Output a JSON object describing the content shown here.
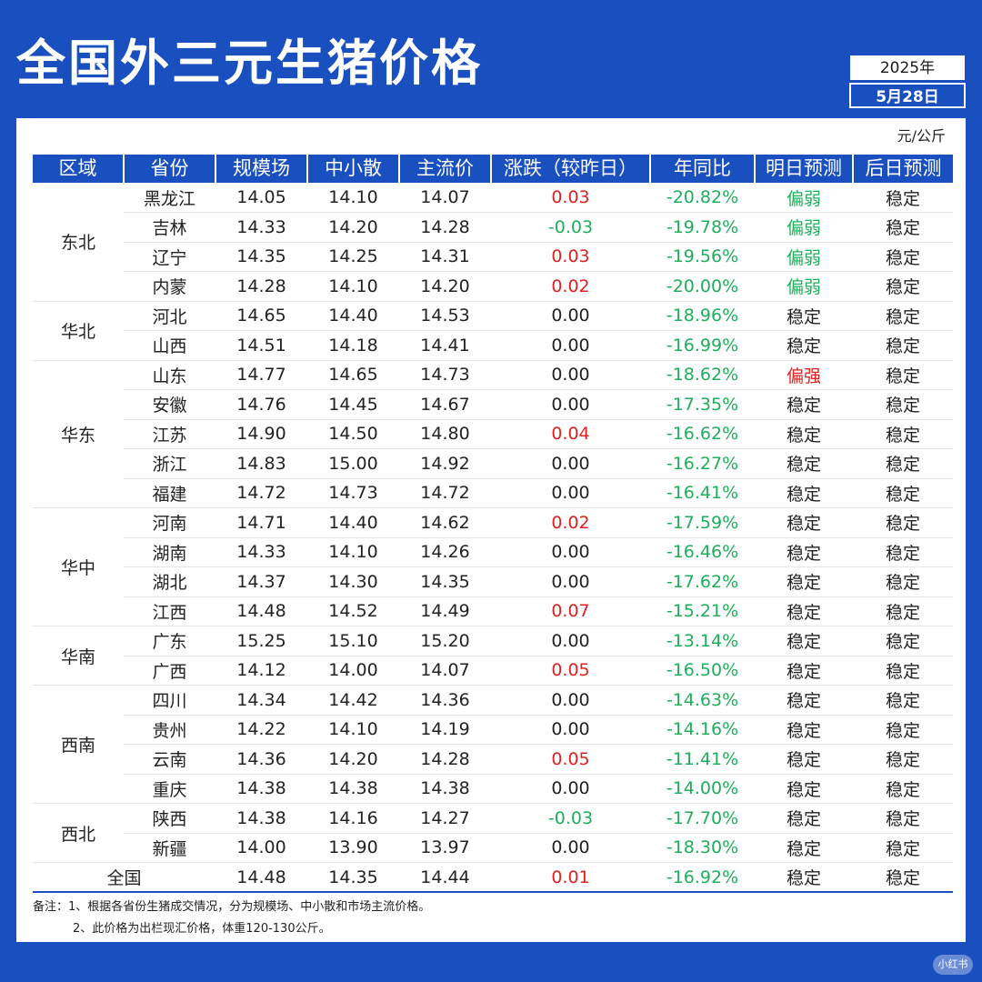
{
  "header": {
    "title": "全国外三元生猪价格",
    "year": "2025年",
    "date": "5月28日",
    "unit": "元/公斤"
  },
  "table": {
    "columns": [
      "区域",
      "省份",
      "规模场",
      "中小散",
      "主流价",
      "涨跌（较昨日）",
      "年同比",
      "明日预测",
      "后日预测"
    ],
    "regions": [
      {
        "name": "东北",
        "rows": [
          {
            "province": "黑龙江",
            "large": "14.05",
            "small": "14.10",
            "main": "14.07",
            "change": "0.03",
            "change_dir": "up",
            "yoy": "-20.82%",
            "tomorrow": "偏弱",
            "tomorrow_tone": "green",
            "after": "稳定"
          },
          {
            "province": "吉林",
            "large": "14.33",
            "small": "14.20",
            "main": "14.28",
            "change": "-0.03",
            "change_dir": "down",
            "yoy": "-19.78%",
            "tomorrow": "偏弱",
            "tomorrow_tone": "green",
            "after": "稳定"
          },
          {
            "province": "辽宁",
            "large": "14.35",
            "small": "14.25",
            "main": "14.31",
            "change": "0.03",
            "change_dir": "up",
            "yoy": "-19.56%",
            "tomorrow": "偏弱",
            "tomorrow_tone": "green",
            "after": "稳定"
          },
          {
            "province": "内蒙",
            "large": "14.28",
            "small": "14.10",
            "main": "14.20",
            "change": "0.02",
            "change_dir": "up",
            "yoy": "-20.00%",
            "tomorrow": "偏弱",
            "tomorrow_tone": "green",
            "after": "稳定"
          }
        ]
      },
      {
        "name": "华北",
        "rows": [
          {
            "province": "河北",
            "large": "14.65",
            "small": "14.40",
            "main": "14.53",
            "change": "0.00",
            "change_dir": "neutral",
            "yoy": "-18.96%",
            "tomorrow": "稳定",
            "tomorrow_tone": "neutral",
            "after": "稳定"
          },
          {
            "province": "山西",
            "large": "14.51",
            "small": "14.18",
            "main": "14.41",
            "change": "0.00",
            "change_dir": "neutral",
            "yoy": "-16.99%",
            "tomorrow": "稳定",
            "tomorrow_tone": "neutral",
            "after": "稳定"
          }
        ]
      },
      {
        "name": "华东",
        "rows": [
          {
            "province": "山东",
            "large": "14.77",
            "small": "14.65",
            "main": "14.73",
            "change": "0.00",
            "change_dir": "neutral",
            "yoy": "-18.62%",
            "tomorrow": "偏强",
            "tomorrow_tone": "red",
            "after": "稳定"
          },
          {
            "province": "安徽",
            "large": "14.76",
            "small": "14.45",
            "main": "14.67",
            "change": "0.00",
            "change_dir": "neutral",
            "yoy": "-17.35%",
            "tomorrow": "稳定",
            "tomorrow_tone": "neutral",
            "after": "稳定"
          },
          {
            "province": "江苏",
            "large": "14.90",
            "small": "14.50",
            "main": "14.80",
            "change": "0.04",
            "change_dir": "up",
            "yoy": "-16.62%",
            "tomorrow": "稳定",
            "tomorrow_tone": "neutral",
            "after": "稳定"
          },
          {
            "province": "浙江",
            "large": "14.83",
            "small": "15.00",
            "main": "14.92",
            "change": "0.00",
            "change_dir": "neutral",
            "yoy": "-16.27%",
            "tomorrow": "稳定",
            "tomorrow_tone": "neutral",
            "after": "稳定"
          },
          {
            "province": "福建",
            "large": "14.72",
            "small": "14.73",
            "main": "14.72",
            "change": "0.00",
            "change_dir": "neutral",
            "yoy": "-16.41%",
            "tomorrow": "稳定",
            "tomorrow_tone": "neutral",
            "after": "稳定"
          }
        ]
      },
      {
        "name": "华中",
        "rows": [
          {
            "province": "河南",
            "large": "14.71",
            "small": "14.40",
            "main": "14.62",
            "change": "0.02",
            "change_dir": "up",
            "yoy": "-17.59%",
            "tomorrow": "稳定",
            "tomorrow_tone": "neutral",
            "after": "稳定"
          },
          {
            "province": "湖南",
            "large": "14.33",
            "small": "14.10",
            "main": "14.26",
            "change": "0.00",
            "change_dir": "neutral",
            "yoy": "-16.46%",
            "tomorrow": "稳定",
            "tomorrow_tone": "neutral",
            "after": "稳定"
          },
          {
            "province": "湖北",
            "large": "14.37",
            "small": "14.30",
            "main": "14.35",
            "change": "0.00",
            "change_dir": "neutral",
            "yoy": "-17.62%",
            "tomorrow": "稳定",
            "tomorrow_tone": "neutral",
            "after": "稳定"
          },
          {
            "province": "江西",
            "large": "14.48",
            "small": "14.52",
            "main": "14.49",
            "change": "0.07",
            "change_dir": "up",
            "yoy": "-15.21%",
            "tomorrow": "稳定",
            "tomorrow_tone": "neutral",
            "after": "稳定"
          }
        ]
      },
      {
        "name": "华南",
        "rows": [
          {
            "province": "广东",
            "large": "15.25",
            "small": "15.10",
            "main": "15.20",
            "change": "0.00",
            "change_dir": "neutral",
            "yoy": "-13.14%",
            "tomorrow": "稳定",
            "tomorrow_tone": "neutral",
            "after": "稳定"
          },
          {
            "province": "广西",
            "large": "14.12",
            "small": "14.00",
            "main": "14.07",
            "change": "0.05",
            "change_dir": "up",
            "yoy": "-16.50%",
            "tomorrow": "稳定",
            "tomorrow_tone": "neutral",
            "after": "稳定"
          }
        ]
      },
      {
        "name": "西南",
        "rows": [
          {
            "province": "四川",
            "large": "14.34",
            "small": "14.42",
            "main": "14.36",
            "change": "0.00",
            "change_dir": "neutral",
            "yoy": "-14.63%",
            "tomorrow": "稳定",
            "tomorrow_tone": "neutral",
            "after": "稳定"
          },
          {
            "province": "贵州",
            "large": "14.22",
            "small": "14.10",
            "main": "14.19",
            "change": "0.00",
            "change_dir": "neutral",
            "yoy": "-14.16%",
            "tomorrow": "稳定",
            "tomorrow_tone": "neutral",
            "after": "稳定"
          },
          {
            "province": "云南",
            "large": "14.36",
            "small": "14.20",
            "main": "14.28",
            "change": "0.05",
            "change_dir": "up",
            "yoy": "-11.41%",
            "tomorrow": "稳定",
            "tomorrow_tone": "neutral",
            "after": "稳定"
          },
          {
            "province": "重庆",
            "large": "14.38",
            "small": "14.38",
            "main": "14.38",
            "change": "0.00",
            "change_dir": "neutral",
            "yoy": "-14.00%",
            "tomorrow": "稳定",
            "tomorrow_tone": "neutral",
            "after": "稳定"
          }
        ]
      },
      {
        "name": "西北",
        "rows": [
          {
            "province": "陕西",
            "large": "14.38",
            "small": "14.16",
            "main": "14.27",
            "change": "-0.03",
            "change_dir": "down",
            "yoy": "-17.70%",
            "tomorrow": "稳定",
            "tomorrow_tone": "neutral",
            "after": "稳定"
          },
          {
            "province": "新疆",
            "large": "14.00",
            "small": "13.90",
            "main": "13.97",
            "change": "0.00",
            "change_dir": "neutral",
            "yoy": "-18.30%",
            "tomorrow": "稳定",
            "tomorrow_tone": "neutral",
            "after": "稳定"
          }
        ]
      }
    ],
    "total": {
      "label": "全国",
      "large": "14.48",
      "small": "14.35",
      "main": "14.44",
      "change": "0.01",
      "change_dir": "up",
      "yoy": "-16.92%",
      "tomorrow": "稳定",
      "after": "稳定"
    }
  },
  "notes": {
    "line1": "备注：1、根据各省份生猪成交情况，分为规模场、中小散和市场主流价格。",
    "line2": "2、此价格为出栏现汇价格，体重120-130公斤。"
  },
  "watermark": "小红书"
}
